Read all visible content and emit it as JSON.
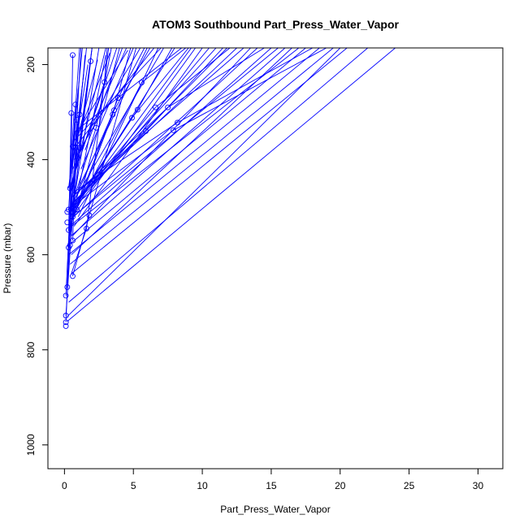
{
  "chart_data": {
    "type": "line",
    "title": "ATOM3 Southbound Part_Press_Water_Vapor",
    "xlabel": "Part_Press_Water_Vapor",
    "ylabel": "Pressure (mbar)",
    "xlim": [
      -1.2,
      31.8
    ],
    "ylim": [
      1050,
      165
    ],
    "y_reversed": true,
    "x_ticks": [
      0,
      5,
      10,
      15,
      20,
      25,
      30
    ],
    "y_ticks": [
      200,
      400,
      600,
      800,
      1000
    ],
    "grid": false,
    "legend": "none",
    "series_color": "#0000ff",
    "points": [
      {
        "x": 0.6,
        "y": 180
      },
      {
        "x": 1.9,
        "y": 193
      },
      {
        "x": 0.8,
        "y": 284
      },
      {
        "x": 0.5,
        "y": 302
      },
      {
        "x": 1.1,
        "y": 305
      },
      {
        "x": 0.9,
        "y": 316
      },
      {
        "x": 2.9,
        "y": 237
      },
      {
        "x": 3.6,
        "y": 296
      },
      {
        "x": 3.9,
        "y": 270
      },
      {
        "x": 3.5,
        "y": 305
      },
      {
        "x": 5.3,
        "y": 295
      },
      {
        "x": 5.6,
        "y": 238
      },
      {
        "x": 6.6,
        "y": 290
      },
      {
        "x": 7.5,
        "y": 290
      },
      {
        "x": 4.9,
        "y": 312
      },
      {
        "x": 5.9,
        "y": 340
      },
      {
        "x": 8.2,
        "y": 322
      },
      {
        "x": 7.9,
        "y": 338
      },
      {
        "x": 2.3,
        "y": 333
      },
      {
        "x": 0.6,
        "y": 372
      },
      {
        "x": 0.8,
        "y": 375
      },
      {
        "x": 1.1,
        "y": 375
      },
      {
        "x": 0.4,
        "y": 460
      },
      {
        "x": 0.3,
        "y": 505
      },
      {
        "x": 0.2,
        "y": 510
      },
      {
        "x": 0.5,
        "y": 510
      },
      {
        "x": 0.6,
        "y": 520
      },
      {
        "x": 0.9,
        "y": 505
      },
      {
        "x": 1.8,
        "y": 517
      },
      {
        "x": 0.2,
        "y": 532
      },
      {
        "x": 0.3,
        "y": 548
      },
      {
        "x": 1.6,
        "y": 545
      },
      {
        "x": 0.6,
        "y": 570
      },
      {
        "x": 0.4,
        "y": 580
      },
      {
        "x": 0.3,
        "y": 585
      },
      {
        "x": 0.6,
        "y": 645
      },
      {
        "x": 0.2,
        "y": 668
      },
      {
        "x": 0.1,
        "y": 686
      },
      {
        "x": 0.1,
        "y": 728
      },
      {
        "x": 0.1,
        "y": 742
      },
      {
        "x": 0.1,
        "y": 750
      }
    ],
    "segments": [
      [
        0.5,
        520,
        1.2,
        165
      ],
      [
        0.4,
        510,
        2.0,
        165
      ],
      [
        0.3,
        505,
        1.1,
        165
      ],
      [
        0.6,
        500,
        2.5,
        165
      ],
      [
        0.4,
        470,
        3.0,
        165
      ],
      [
        0.5,
        450,
        3.8,
        165
      ],
      [
        0.6,
        420,
        4.5,
        165
      ],
      [
        0.7,
        400,
        5.5,
        165
      ],
      [
        0.6,
        380,
        6.5,
        165
      ],
      [
        0.7,
        360,
        7.0,
        165
      ],
      [
        0.8,
        340,
        8.5,
        165
      ],
      [
        0.6,
        520,
        9.5,
        165
      ],
      [
        0.5,
        510,
        10.5,
        165
      ],
      [
        0.4,
        500,
        11.0,
        165
      ],
      [
        0.6,
        490,
        12.5,
        165
      ],
      [
        0.5,
        480,
        13.0,
        165
      ],
      [
        0.3,
        530,
        14.0,
        165
      ],
      [
        0.4,
        540,
        15.0,
        165
      ],
      [
        0.5,
        560,
        16.0,
        165
      ],
      [
        0.3,
        580,
        17.5,
        165
      ],
      [
        0.3,
        600,
        18.5,
        165
      ],
      [
        0.4,
        620,
        19.5,
        165
      ],
      [
        0.5,
        640,
        20.5,
        165
      ],
      [
        0.3,
        700,
        22.0,
        165
      ],
      [
        0.2,
        740,
        24.0,
        165
      ],
      [
        0.2,
        730,
        20.0,
        165
      ],
      [
        0.5,
        600,
        16.5,
        165
      ],
      [
        0.6,
        560,
        13.5,
        165
      ],
      [
        0.7,
        540,
        10.0,
        165
      ],
      [
        0.8,
        500,
        8.0,
        165
      ],
      [
        1.0,
        460,
        6.0,
        165
      ],
      [
        1.2,
        420,
        5.0,
        165
      ],
      [
        1.5,
        380,
        4.2,
        165
      ],
      [
        0.4,
        460,
        2.9,
        237
      ],
      [
        0.5,
        500,
        3.6,
        296
      ],
      [
        0.5,
        510,
        5.3,
        295
      ],
      [
        0.6,
        520,
        5.6,
        238
      ],
      [
        0.4,
        505,
        6.6,
        290
      ],
      [
        0.5,
        480,
        7.5,
        290
      ],
      [
        0.6,
        470,
        8.2,
        322
      ],
      [
        0.5,
        500,
        7.9,
        338
      ],
      [
        0.4,
        510,
        4.9,
        312
      ],
      [
        0.3,
        505,
        5.9,
        340
      ],
      [
        0.6,
        520,
        3.9,
        270
      ],
      [
        0.5,
        500,
        2.3,
        333
      ],
      [
        0.4,
        540,
        3.5,
        305
      ],
      [
        0.3,
        580,
        1.9,
        193
      ],
      [
        0.5,
        560,
        1.1,
        305
      ],
      [
        0.6,
        570,
        0.9,
        316
      ],
      [
        0.5,
        640,
        1.6,
        545
      ],
      [
        0.6,
        645,
        1.8,
        517
      ],
      [
        0.3,
        585,
        2.0,
        165
      ],
      [
        0.2,
        668,
        0.5,
        460
      ],
      [
        0.1,
        686,
        0.4,
        505
      ],
      [
        0.1,
        728,
        0.6,
        510
      ],
      [
        0.1,
        742,
        0.5,
        500
      ],
      [
        0.2,
        670,
        0.8,
        284
      ],
      [
        0.3,
        550,
        0.5,
        302
      ],
      [
        0.4,
        530,
        0.6,
        180
      ],
      [
        0.5,
        505,
        1.5,
        180
      ],
      [
        0.7,
        510,
        3.0,
        180
      ],
      [
        0.9,
        505,
        4.0,
        165
      ],
      [
        1.0,
        520,
        6.8,
        165
      ],
      [
        1.1,
        375,
        2.0,
        165
      ],
      [
        0.8,
        375,
        1.6,
        165
      ],
      [
        0.6,
        372,
        1.3,
        165
      ],
      [
        1.6,
        545,
        3.2,
        165
      ],
      [
        1.8,
        517,
        5.2,
        165
      ],
      [
        2.3,
        333,
        3.4,
        165
      ],
      [
        2.9,
        237,
        3.1,
        165
      ],
      [
        3.5,
        305,
        4.8,
        165
      ],
      [
        3.6,
        296,
        6.2,
        165
      ],
      [
        5.3,
        295,
        7.8,
        165
      ],
      [
        4.9,
        312,
        9.0,
        165
      ],
      [
        5.9,
        340,
        11.5,
        165
      ],
      [
        6.6,
        290,
        12.0,
        165
      ],
      [
        7.5,
        290,
        14.5,
        165
      ],
      [
        8.2,
        322,
        18.0,
        165
      ],
      [
        7.9,
        338,
        19.0,
        165
      ],
      [
        5.6,
        238,
        8.8,
        165
      ],
      [
        3.9,
        270,
        5.8,
        165
      ],
      [
        0.4,
        500,
        7.2,
        165
      ],
      [
        0.3,
        515,
        9.2,
        165
      ],
      [
        0.5,
        495,
        11.8,
        165
      ],
      [
        0.4,
        525,
        15.5,
        165
      ],
      [
        0.3,
        545,
        17.0,
        165
      ],
      [
        0.6,
        505,
        0.9,
        375
      ],
      [
        0.5,
        470,
        1.1,
        375
      ],
      [
        0.3,
        460,
        0.8,
        340
      ],
      [
        0.4,
        440,
        0.7,
        300
      ],
      [
        0.5,
        430,
        1.0,
        250
      ],
      [
        0.6,
        410,
        1.4,
        220
      ],
      [
        0.7,
        390,
        1.7,
        200
      ],
      [
        0.8,
        370,
        2.4,
        190
      ],
      [
        0.9,
        355,
        3.3,
        175
      ],
      [
        1.2,
        330,
        4.6,
        170
      ]
    ]
  }
}
